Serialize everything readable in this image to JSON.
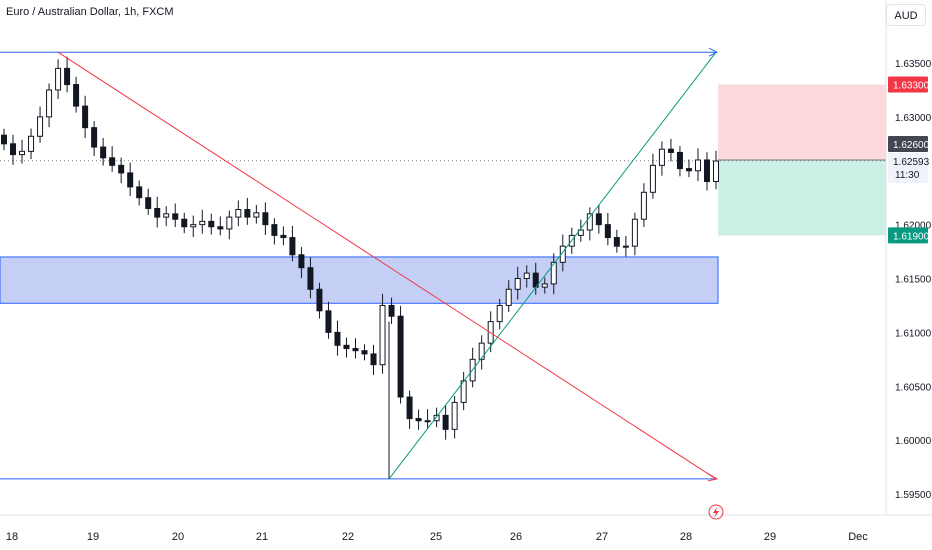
{
  "header": {
    "title": "Euro / Australian Dollar, 1h, FXCM",
    "currency": "AUD"
  },
  "colors": {
    "up": "#131722",
    "down": "#131722",
    "resistance_line": "#2962ff",
    "support_line": "#2962ff",
    "zone_fill": "#c5cff5",
    "zone_border": "#2962ff",
    "downtrend": "#f23645",
    "uptrend": "#089981",
    "stop_fill": "#fdd9dc",
    "target_fill": "#ccefe6",
    "stop_badge": "#f23645",
    "target_badge": "#089981",
    "entry_badge": "#434651"
  },
  "chart_data": {
    "type": "candlestick",
    "title": "Euro / Australian Dollar, 1h, FXCM",
    "yaxis": {
      "ticks": [
        "1.63500",
        "1.63000",
        "1.62000",
        "1.61500",
        "1.61000",
        "1.60500",
        "1.60000",
        "1.59500"
      ],
      "tick_values": [
        1.635,
        1.63,
        1.62,
        1.615,
        1.61,
        1.605,
        1.6,
        1.595
      ],
      "range": [
        1.5935,
        1.6395
      ]
    },
    "xaxis": {
      "ticks": [
        "18",
        "19",
        "20",
        "21",
        "22",
        "25",
        "26",
        "27",
        "28",
        "29",
        "Dec"
      ]
    },
    "levels": {
      "resistance": 1.636,
      "support": 1.5964,
      "zone_top": 1.617,
      "zone_bottom": 1.6127
    },
    "trendlines": {
      "downtrend": {
        "from_price": 1.636,
        "to_price": 1.5964
      },
      "uptrend": {
        "from_price": 1.5964,
        "to_price": 1.636
      }
    },
    "position": {
      "stop": 1.633,
      "entry": 1.626,
      "target": 1.619,
      "current": "1.62593",
      "countdown": "11:30"
    },
    "badges": {
      "stop": "1.63300",
      "entry": "1.62600",
      "target": "1.61900"
    },
    "closes": [
      1.6275,
      1.6265,
      1.6268,
      1.6282,
      1.63,
      1.6325,
      1.6345,
      1.633,
      1.631,
      1.629,
      1.6272,
      1.6262,
      1.6255,
      1.6248,
      1.6235,
      1.6225,
      1.6215,
      1.6207,
      1.621,
      1.6205,
      1.6198,
      1.62,
      1.6203,
      1.6198,
      1.6196,
      1.6207,
      1.6214,
      1.6207,
      1.6211,
      1.62,
      1.619,
      1.6188,
      1.6172,
      1.616,
      1.614,
      1.612,
      1.61,
      1.6088,
      1.6085,
      1.6083,
      1.608,
      1.607,
      1.6125,
      1.6115,
      1.604,
      1.602,
      1.6018,
      1.6018,
      1.6023,
      1.601,
      1.6035,
      1.6055,
      1.6075,
      1.609,
      1.611,
      1.6125,
      1.614,
      1.615,
      1.6155,
      1.6142,
      1.6145,
      1.6165,
      1.618,
      1.619,
      1.6195,
      1.621,
      1.62,
      1.6188,
      1.618,
      1.618,
      1.6205,
      1.623,
      1.6255,
      1.627,
      1.6267,
      1.6252,
      1.625,
      1.626,
      1.624,
      1.6259
    ]
  }
}
